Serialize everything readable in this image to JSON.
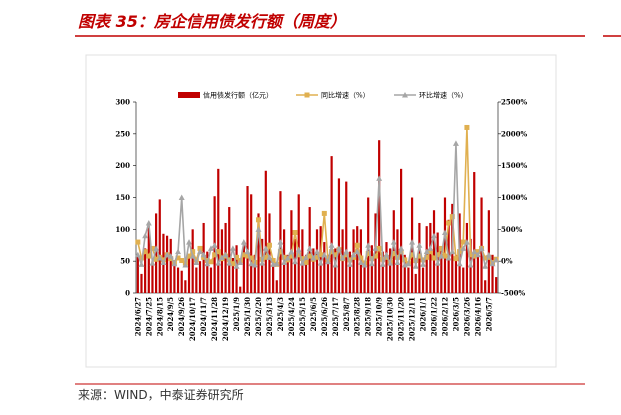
{
  "header": {
    "title": "图表 35：房企信用债发行额（周度）"
  },
  "chart_data": {
    "type": "bar",
    "categories": [
      "2024/6/27",
      null,
      null,
      "2024/7/25",
      null,
      null,
      "2024/8/15",
      null,
      null,
      "2024/9/5",
      null,
      null,
      "2024/9/26",
      null,
      null,
      "2024/10/17",
      null,
      null,
      "2024/11/7",
      null,
      null,
      "2024/11/28",
      null,
      null,
      "2024/12/19",
      null,
      null,
      "2025/1/9",
      null,
      null,
      "2025/1/30",
      null,
      null,
      "2025/2/20",
      null,
      null,
      "2025/3/13",
      null,
      null,
      "2025/4/3",
      null,
      null,
      "2025/4/24",
      null,
      null,
      "2025/5/15",
      null,
      null,
      "2025/6/5",
      null,
      null,
      "2025/6/26",
      null,
      null,
      "2025/7/17",
      null,
      null,
      "2025/8/7",
      null,
      null,
      "2025/8/28",
      null,
      null,
      "2025/9/18",
      null,
      null,
      "2025/10/9",
      null,
      null,
      "2025/10/30",
      null,
      null,
      "2025/11/20",
      null,
      null,
      "2025/12/11",
      null,
      null,
      "2026/1/1",
      null,
      null,
      "2026/1/22",
      null,
      null,
      "2026/2/12",
      null,
      null,
      "2026/3/5",
      null,
      null,
      "2026/3/26",
      null,
      null,
      "2026/4/16",
      null,
      null,
      "2026/5/7",
      null,
      null
    ],
    "series": [
      {
        "name": "信用债发行额（亿元）",
        "type": "bar",
        "color": "#c00000",
        "values": [
          60,
          30,
          70,
          105,
          50,
          125,
          147,
          93,
          90,
          85,
          45,
          40,
          35,
          20,
          60,
          100,
          40,
          50,
          110,
          65,
          40,
          152,
          195,
          100,
          110,
          135,
          55,
          75,
          10,
          80,
          168,
          155,
          60,
          125,
          85,
          192,
          125,
          45,
          20,
          160,
          100,
          60,
          130,
          85,
          155,
          100,
          60,
          135,
          70,
          100,
          105,
          80,
          60,
          215,
          70,
          180,
          100,
          175,
          65,
          100,
          105,
          100,
          40,
          150,
          75,
          125,
          240,
          65,
          80,
          70,
          130,
          100,
          195,
          60,
          40,
          150,
          30,
          110,
          40,
          105,
          110,
          130,
          95,
          70,
          150,
          115,
          140,
          60,
          125,
          40,
          110,
          85,
          190,
          60,
          150,
          20,
          130,
          60,
          25
        ]
      },
      {
        "name": "同比增速（%）",
        "type": "line",
        "marker": "square",
        "axis": "y2",
        "color": "#e0b050",
        "values": [
          300,
          50,
          150,
          80,
          200,
          30,
          60,
          20,
          100,
          40,
          -20,
          50,
          10,
          -30,
          80,
          150,
          20,
          200,
          60,
          10,
          -10,
          100,
          150,
          40,
          80,
          20,
          -40,
          60,
          10,
          100,
          80,
          50,
          -20,
          650,
          30,
          60,
          250,
          10,
          -50,
          150,
          60,
          20,
          80,
          450,
          100,
          40,
          -20,
          80,
          30,
          60,
          100,
          750,
          20,
          150,
          100,
          180,
          40,
          100,
          20,
          60,
          250,
          50,
          -30,
          120,
          40,
          80,
          200,
          30,
          60,
          -20,
          120,
          60,
          150,
          20,
          -40,
          100,
          10,
          80,
          20,
          60,
          150,
          50,
          100,
          200,
          80,
          600,
          700,
          40,
          150,
          300,
          2100,
          100,
          80,
          150,
          200,
          50,
          60,
          -20,
          30
        ]
      },
      {
        "name": "环比增速（%）",
        "type": "line",
        "marker": "triangle",
        "axis": "y2",
        "color": "#a6a6a6",
        "values": [
          100,
          -50,
          400,
          600,
          -30,
          200,
          50,
          -20,
          100,
          80,
          -40,
          150,
          1000,
          -60,
          300,
          80,
          -20,
          150,
          100,
          -40,
          200,
          250,
          -30,
          60,
          100,
          -30,
          200,
          -80,
          -20,
          300,
          150,
          -40,
          -60,
          500,
          -30,
          200,
          60,
          -50,
          -40,
          300,
          -20,
          50,
          150,
          -10,
          180,
          -30,
          60,
          200,
          50,
          150,
          -30,
          100,
          -10,
          250,
          -60,
          200,
          50,
          150,
          -50,
          100,
          150,
          -20,
          -60,
          250,
          -40,
          200,
          1300,
          -50,
          100,
          -30,
          300,
          -20,
          200,
          -60,
          -40,
          300,
          -80,
          250,
          -50,
          150,
          200,
          400,
          -30,
          80,
          450,
          50,
          150,
          1850,
          -40,
          200,
          300,
          -60,
          150,
          100,
          200,
          -80,
          100,
          -40,
          20
        ]
      }
    ],
    "ylim": [
      0,
      300
    ],
    "yticks": [
      0,
      50,
      100,
      150,
      200,
      250,
      300
    ],
    "y2lim": [
      -500,
      2500
    ],
    "y2ticks": [
      {
        "value": -500,
        "label": "-500%"
      },
      {
        "value": 0,
        "label": "0%"
      },
      {
        "value": 500,
        "label": "500%"
      },
      {
        "value": 1000,
        "label": "1000%"
      },
      {
        "value": 1500,
        "label": "1500%"
      },
      {
        "value": 2000,
        "label": "2000%"
      },
      {
        "value": 2500,
        "label": "2500%"
      }
    ],
    "grid": false,
    "legend": "top"
  },
  "footer": {
    "source": "来源：WIND，中泰证券研究所"
  }
}
